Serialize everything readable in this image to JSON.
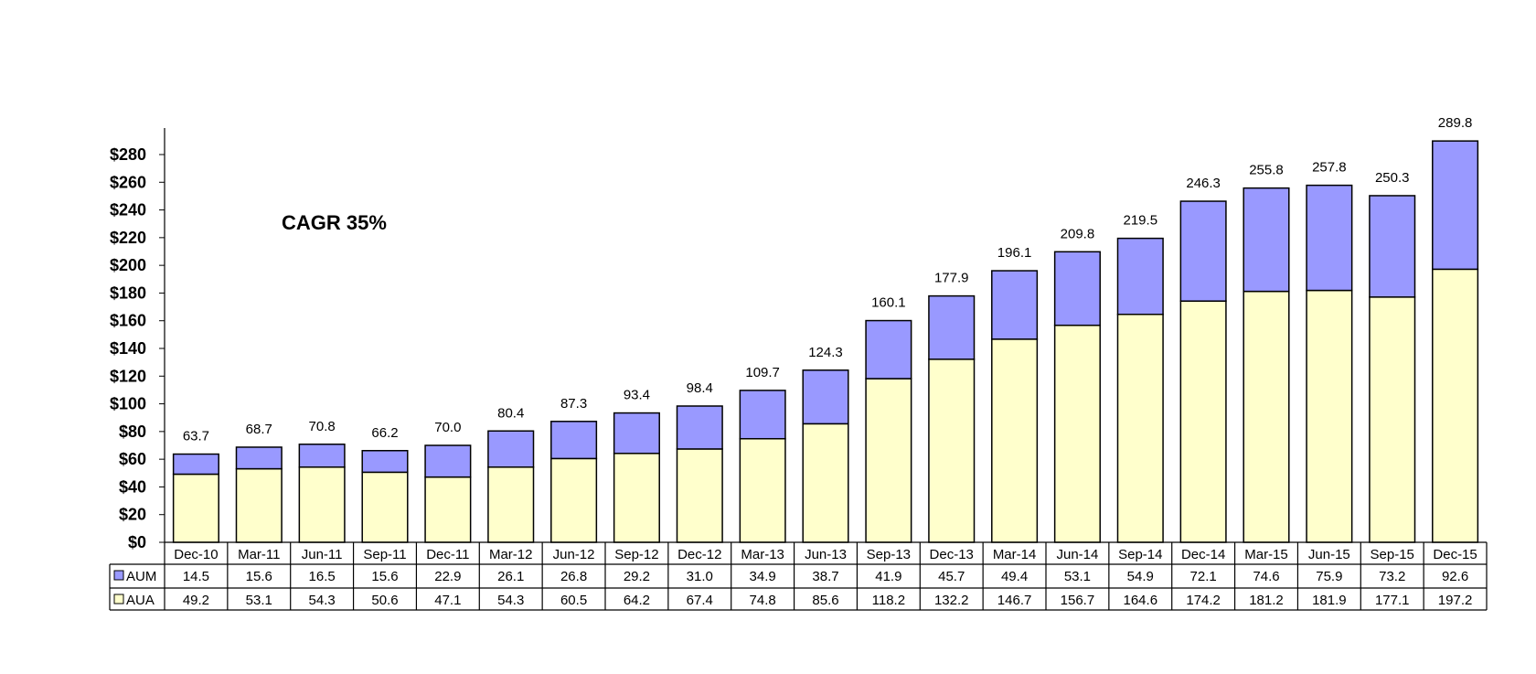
{
  "chart_data": {
    "type": "bar",
    "stacked": true,
    "annotation": "CAGR 35%",
    "categories": [
      "Dec-10",
      "Mar-11",
      "Jun-11",
      "Sep-11",
      "Dec-11",
      "Mar-12",
      "Jun-12",
      "Sep-12",
      "Dec-12",
      "Mar-13",
      "Jun-13",
      "Sep-13",
      "Dec-13",
      "Mar-14",
      "Jun-14",
      "Sep-14",
      "Dec-14",
      "Mar-15",
      "Jun-15",
      "Sep-15",
      "Dec-15"
    ],
    "series": [
      {
        "name": "AUA",
        "color": "#FFFFCC",
        "values": [
          49.2,
          53.1,
          54.3,
          50.6,
          47.1,
          54.3,
          60.5,
          64.2,
          67.4,
          74.8,
          85.6,
          118.2,
          132.2,
          146.7,
          156.7,
          164.6,
          174.2,
          181.2,
          181.9,
          177.1,
          197.2
        ],
        "labels": [
          "49.2",
          "53.1",
          "54.3",
          "50.6",
          "47.1",
          "54.3",
          "60.5",
          "64.2",
          "67.4",
          "74.8",
          "85.6",
          "118.2",
          "132.2",
          "146.7",
          "156.7",
          "164.6",
          "174.2",
          "181.2",
          "181.9",
          "177.1",
          "197.2"
        ]
      },
      {
        "name": "AUM",
        "color": "#9999FF",
        "values": [
          14.5,
          15.6,
          16.5,
          15.6,
          22.9,
          26.1,
          26.8,
          29.2,
          31.0,
          34.9,
          38.7,
          41.9,
          45.7,
          49.4,
          53.1,
          54.9,
          72.1,
          74.6,
          75.9,
          73.2,
          92.6
        ],
        "labels": [
          "14.5",
          "15.6",
          "16.5",
          "15.6",
          "22.9",
          "26.1",
          "26.8",
          "29.2",
          "31.0",
          "34.9",
          "38.7",
          "41.9",
          "45.7",
          "49.4",
          "53.1",
          "54.9",
          "72.1",
          "74.6",
          "75.9",
          "73.2",
          "92.6"
        ]
      }
    ],
    "totals": [
      63.7,
      68.7,
      70.8,
      66.2,
      70.0,
      80.4,
      87.3,
      93.4,
      98.4,
      109.7,
      124.3,
      160.1,
      177.9,
      196.1,
      209.8,
      219.5,
      246.3,
      255.8,
      257.8,
      250.3,
      289.8
    ],
    "total_labels": [
      "63.7",
      "68.7",
      "70.8",
      "66.2",
      "70.0",
      "80.4",
      "87.3",
      "93.4",
      "98.4",
      "109.7",
      "124.3",
      "160.1",
      "177.9",
      "196.1",
      "209.8",
      "219.5",
      "246.3",
      "255.8",
      "257.8",
      "250.3",
      "289.8"
    ],
    "table_rows": [
      "AUM",
      "AUA"
    ],
    "ylim": [
      0,
      280
    ],
    "yticks": [
      0,
      20,
      40,
      60,
      80,
      100,
      120,
      140,
      160,
      180,
      200,
      220,
      240,
      260,
      280
    ],
    "ytick_labels": [
      "$0",
      "$20",
      "$40",
      "$60",
      "$80",
      "$100",
      "$120",
      "$140",
      "$160",
      "$180",
      "$200",
      "$220",
      "$240",
      "$260",
      "$280"
    ],
    "grid": false,
    "legend": "data-table"
  }
}
